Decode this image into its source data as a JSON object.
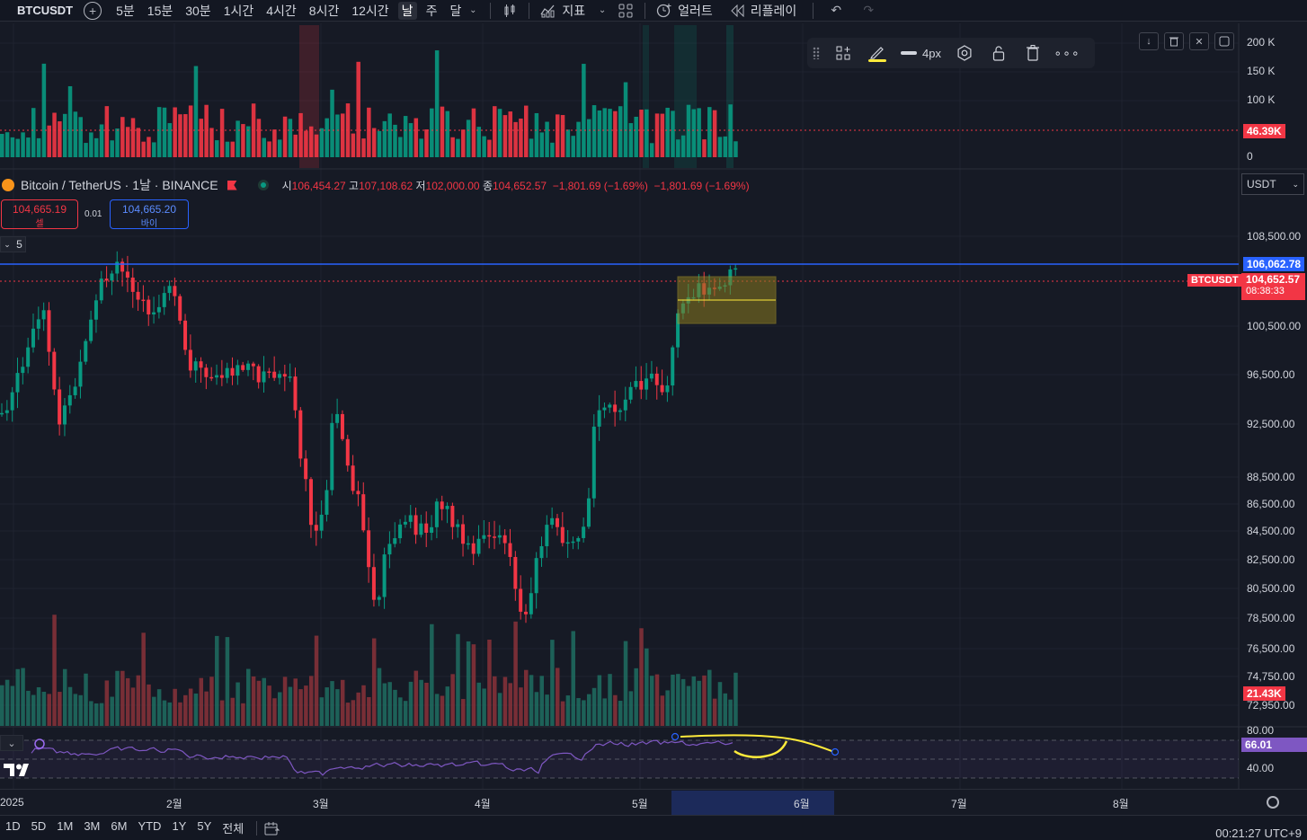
{
  "toolbar": {
    "symbol": "BTCUSDT",
    "intervals": [
      "5분",
      "15분",
      "30분",
      "1시간",
      "4시간",
      "8시간",
      "12시간",
      "날",
      "주",
      "달"
    ],
    "active_interval": "날",
    "indicators_label": "지표",
    "alert_label": "얼러트",
    "replay_label": "리플레이"
  },
  "volume_axis": [
    "200 K",
    "150 K",
    "100 K",
    "0"
  ],
  "volume_tag": "46.39K",
  "legend": {
    "title": "Bitcoin / TetherUS · 1날 · BINANCE",
    "open_label": "시",
    "open": "106,454.27",
    "high_label": "고",
    "high": "107,108.62",
    "low_label": "저",
    "low": "102,000.00",
    "close_label": "종",
    "close": "104,652.57",
    "change": "−1,801.69 (−1.69%)",
    "change2": "−1,801.69 (−1.69%)"
  },
  "sell": {
    "price": "104,665.19",
    "label": "셀"
  },
  "buy": {
    "price": "104,665.20",
    "label": "바이"
  },
  "spread": "0.01",
  "collapse_count": "5",
  "currency": "USDT",
  "price_axis": [
    "108,500.00",
    "100,500.00",
    "96,500.00",
    "92,500.00",
    "88,500.00",
    "86,500.00",
    "84,500.00",
    "82,500.00",
    "80,500.00",
    "78,500.00",
    "76,500.00",
    "74,750.00",
    "72,950.00"
  ],
  "price_tags": {
    "line": "106,062.78",
    "symbol": "BTCUSDT",
    "last": "104,652.57",
    "countdown": "08:38:33",
    "volume": "21.43K"
  },
  "drawbar": {
    "width_label": "4px"
  },
  "rsi_axis": [
    "80.00",
    "40.00"
  ],
  "rsi_tag": "66.01",
  "time_labels": [
    "2025",
    "2월",
    "3월",
    "4월",
    "5월",
    "6월",
    "7월",
    "8월"
  ],
  "bottom": {
    "ranges": [
      "1D",
      "5D",
      "1M",
      "3M",
      "6M",
      "YTD",
      "1Y",
      "5Y",
      "전체"
    ],
    "clock": "00:21:27 UTC+9"
  },
  "colors": {
    "up": "#089981",
    "down": "#f23645",
    "accent": "#2962ff",
    "rsi": "#7e57c2",
    "drawing": "#ffeb3b"
  }
}
